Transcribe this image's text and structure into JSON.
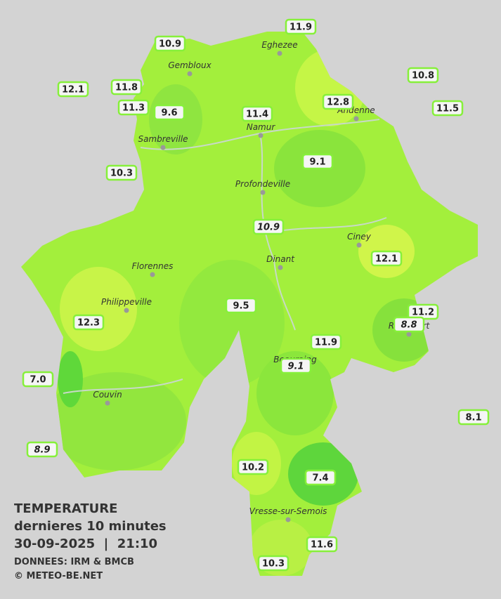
{
  "title": "TEMPERATURE",
  "subtitle": "dernieres 10 minutes",
  "datetime": "30-09-2025  |  21:10",
  "source": "DONNEES: IRM & BMCB",
  "credit": "© METEO-BE.NET",
  "cities": [
    "Eghezee",
    "Gembloux",
    "Andenne",
    "Namur",
    "Sambreville",
    "Profondeville",
    "Ciney",
    "Dinant",
    "Florennes",
    "Philippeville",
    "Rochefort",
    "Beauraing",
    "Couvin",
    "Vresse-sur-Semois"
  ],
  "stations": [
    {
      "value": "10.9",
      "italic": false
    },
    {
      "value": "11.9",
      "italic": false
    },
    {
      "value": "12.1",
      "italic": false
    },
    {
      "value": "11.8",
      "italic": false
    },
    {
      "value": "11.3",
      "italic": false
    },
    {
      "value": "9.6",
      "italic": false
    },
    {
      "value": "11.4",
      "italic": false
    },
    {
      "value": "12.8",
      "italic": false
    },
    {
      "value": "10.8",
      "italic": false
    },
    {
      "value": "11.5",
      "italic": false
    },
    {
      "value": "10.3",
      "italic": false
    },
    {
      "value": "9.1",
      "italic": false
    },
    {
      "value": "10.9",
      "italic": true
    },
    {
      "value": "12.1",
      "italic": false
    },
    {
      "value": "12.3",
      "italic": false
    },
    {
      "value": "9.5",
      "italic": false
    },
    {
      "value": "11.2",
      "italic": false
    },
    {
      "value": "8.8",
      "italic": true
    },
    {
      "value": "11.9",
      "italic": false
    },
    {
      "value": "9.1",
      "italic": true
    },
    {
      "value": "7.0",
      "italic": false
    },
    {
      "value": "8.1",
      "italic": false
    },
    {
      "value": "8.9",
      "italic": true
    },
    {
      "value": "10.2",
      "italic": false
    },
    {
      "value": "7.4",
      "italic": false
    },
    {
      "value": "11.6",
      "italic": false
    },
    {
      "value": "10.3",
      "italic": false
    }
  ]
}
